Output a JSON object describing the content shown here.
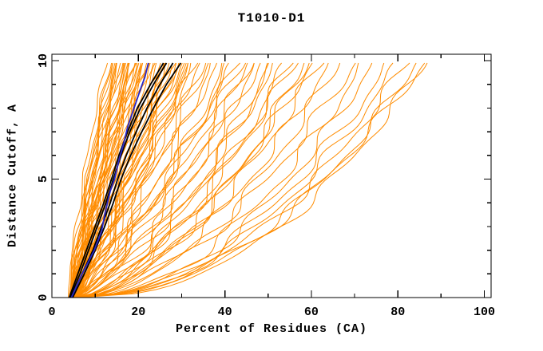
{
  "chart_data": {
    "type": "line",
    "title": "T1010-D1",
    "xlabel": "Percent of Residues (CA)",
    "ylabel": "Distance Cutoff, A",
    "xlim": [
      0,
      101.6
    ],
    "ylim": [
      0,
      10.27
    ],
    "x_major_ticks": [
      0,
      20,
      40,
      60,
      80,
      100
    ],
    "x_minor_ticks": [
      10,
      30,
      50,
      70,
      90
    ],
    "y_major_ticks": [
      0,
      5,
      10
    ],
    "y_minor_ticks": [
      1,
      2,
      3,
      4,
      6,
      7,
      8,
      9
    ],
    "grid": false,
    "legend": null,
    "colors": {
      "model_curves": "#FF8C00",
      "highlight_black": "#000000",
      "highlight_blue": "#2828C8",
      "axis": "#000000",
      "background": "#FFFFFF"
    },
    "curve_y_end": 9.9,
    "orange_curve_format": "[x_start_pct, x_end_pct_at_cutoff10, shape_exponent, wiggle_amp, wiggle_phase]",
    "orange_curves": [
      [
        4.0,
        12.6,
        1.45,
        0.4,
        0.5
      ],
      [
        4.2,
        13.5,
        1.35,
        0.5,
        1.2
      ],
      [
        4.5,
        14.0,
        1.3,
        0.5,
        2.1
      ],
      [
        3.8,
        14.5,
        1.25,
        0.6,
        3.0
      ],
      [
        4.8,
        15.0,
        1.2,
        0.5,
        4.2
      ],
      [
        5.0,
        15.5,
        1.3,
        0.6,
        5.1
      ],
      [
        4.3,
        16.0,
        1.15,
        0.7,
        0.9
      ],
      [
        4.6,
        16.5,
        1.25,
        0.5,
        1.8
      ],
      [
        5.2,
        17.0,
        1.1,
        0.6,
        2.7
      ],
      [
        4.1,
        17.5,
        1.2,
        0.7,
        3.6
      ],
      [
        4.9,
        18.0,
        1.05,
        0.6,
        4.5
      ],
      [
        5.5,
        18.5,
        1.15,
        0.7,
        5.4
      ],
      [
        4.4,
        19.0,
        1.1,
        0.8,
        0.3
      ],
      [
        5.1,
        19.5,
        1.0,
        0.6,
        1.5
      ],
      [
        4.7,
        20.0,
        1.2,
        0.7,
        2.4
      ],
      [
        5.3,
        20.5,
        1.05,
        0.8,
        3.3
      ],
      [
        4.2,
        21.0,
        1.1,
        0.6,
        4.8
      ],
      [
        5.6,
        21.5,
        0.95,
        0.7,
        5.7
      ],
      [
        4.8,
        22.0,
        1.15,
        0.8,
        0.7
      ],
      [
        5.0,
        13.8,
        1.4,
        0.4,
        1.1
      ],
      [
        4.5,
        15.8,
        1.28,
        0.5,
        2.9
      ],
      [
        5.4,
        16.8,
        1.12,
        0.6,
        3.8
      ],
      [
        4.3,
        18.2,
        1.18,
        0.7,
        4.9
      ],
      [
        5.2,
        19.2,
        1.02,
        0.6,
        0.2
      ],
      [
        4.6,
        20.8,
        1.08,
        0.7,
        1.9
      ],
      [
        5.7,
        21.8,
        0.92,
        0.8,
        2.6
      ],
      [
        4.9,
        14.8,
        1.32,
        0.5,
        3.4
      ],
      [
        5.3,
        17.8,
        1.1,
        0.6,
        4.1
      ],
      [
        4.4,
        19.8,
        1.12,
        0.7,
        5.2
      ],
      [
        5.8,
        22.0,
        1.0,
        0.8,
        0.8
      ],
      [
        4.5,
        23.0,
        1.0,
        0.9,
        1.3
      ],
      [
        5.0,
        24.0,
        0.95,
        0.8,
        2.2
      ],
      [
        5.5,
        25.0,
        0.9,
        1.0,
        3.1
      ],
      [
        4.8,
        26.0,
        1.05,
        0.9,
        4.0
      ],
      [
        5.2,
        27.0,
        0.92,
        1.0,
        5.0
      ],
      [
        4.6,
        28.0,
        0.98,
        1.1,
        0.4
      ],
      [
        5.6,
        29.0,
        0.88,
        0.9,
        1.6
      ],
      [
        4.9,
        30.0,
        0.95,
        1.0,
        2.5
      ],
      [
        5.3,
        31.0,
        0.85,
        1.1,
        3.7
      ],
      [
        5.8,
        32.0,
        0.9,
        1.0,
        4.6
      ],
      [
        4.7,
        23.5,
        1.02,
        0.9,
        5.5
      ],
      [
        5.1,
        25.5,
        0.93,
        1.0,
        0.6
      ],
      [
        5.5,
        27.5,
        0.9,
        1.1,
        1.7
      ],
      [
        4.8,
        29.5,
        0.96,
        0.9,
        2.8
      ],
      [
        5.4,
        31.5,
        0.87,
        1.0,
        3.9
      ],
      [
        5.0,
        24.5,
        1.0,
        0.9,
        5.8
      ],
      [
        5.9,
        26.5,
        0.85,
        1.0,
        1.0
      ],
      [
        4.6,
        28.5,
        0.93,
        1.1,
        2.0
      ],
      [
        5.2,
        30.5,
        0.88,
        1.0,
        3.2
      ],
      [
        5.6,
        32.5,
        0.82,
        1.1,
        4.4
      ],
      [
        5.0,
        33.0,
        0.9,
        1.2,
        0.5
      ],
      [
        5.5,
        35.0,
        0.8,
        1.3,
        1.4
      ],
      [
        4.8,
        36.0,
        0.85,
        1.2,
        2.3
      ],
      [
        5.3,
        38.0,
        0.78,
        1.3,
        3.5
      ],
      [
        5.8,
        40.0,
        0.72,
        1.2,
        4.7
      ],
      [
        5.1,
        42.0,
        0.8,
        1.4,
        5.6
      ],
      [
        4.9,
        44.0,
        0.75,
        1.3,
        0.9
      ],
      [
        5.6,
        45.0,
        0.7,
        1.2,
        2.1
      ],
      [
        5.2,
        34.0,
        0.88,
        1.2,
        3.0
      ],
      [
        5.7,
        37.0,
        0.76,
        1.3,
        4.3
      ],
      [
        5.4,
        41.0,
        0.73,
        1.4,
        5.3
      ],
      [
        5.0,
        43.0,
        0.82,
        1.2,
        0.1
      ],
      [
        5.5,
        46.0,
        0.7,
        1.4,
        1.2
      ],
      [
        5.0,
        48.0,
        0.65,
        1.5,
        2.4
      ],
      [
        5.8,
        50.0,
        0.6,
        1.4,
        3.6
      ],
      [
        5.3,
        52.0,
        0.68,
        1.5,
        4.8
      ],
      [
        5.6,
        54.0,
        0.58,
        1.4,
        5.9
      ],
      [
        5.1,
        56.0,
        0.63,
        1.5,
        0.8
      ],
      [
        5.9,
        58.0,
        0.55,
        1.4,
        1.9
      ],
      [
        5.4,
        60.0,
        0.6,
        1.5,
        3.1
      ],
      [
        5.2,
        47.0,
        0.66,
        1.5,
        4.1
      ],
      [
        5.7,
        51.0,
        0.62,
        1.4,
        5.2
      ],
      [
        5.0,
        55.0,
        0.6,
        1.5,
        0.3
      ],
      [
        5.5,
        59.0,
        0.57,
        1.4,
        1.6
      ],
      [
        5.5,
        62.0,
        0.58,
        1.6,
        0.4
      ],
      [
        5.8,
        66.0,
        0.52,
        1.5,
        1.5
      ],
      [
        5.2,
        70.0,
        0.55,
        1.6,
        2.6
      ],
      [
        6.0,
        74.0,
        0.48,
        1.5,
        3.8
      ],
      [
        5.6,
        78.0,
        0.5,
        1.6,
        5.0
      ],
      [
        5.3,
        82.0,
        0.47,
        1.5,
        0.2
      ],
      [
        6.2,
        86.0,
        0.45,
        1.4,
        1.1
      ],
      [
        5.9,
        86.0,
        0.5,
        1.5,
        2.8
      ],
      [
        5.4,
        64.0,
        0.55,
        1.5,
        3.9
      ],
      [
        5.8,
        72.0,
        0.5,
        1.6,
        4.9
      ],
      [
        5.1,
        80.0,
        0.48,
        1.5,
        5.7
      ],
      [
        6.0,
        84.0,
        0.46,
        1.4,
        2.2
      ]
    ],
    "black_curves": [
      [
        [
          4.2,
          0
        ],
        [
          6.5,
          1
        ],
        [
          8.5,
          2
        ],
        [
          10.5,
          3
        ],
        [
          12.5,
          4
        ],
        [
          14.2,
          5
        ],
        [
          16.0,
          6
        ],
        [
          18.0,
          7
        ],
        [
          20.5,
          8
        ],
        [
          23.5,
          9
        ],
        [
          26.5,
          9.9
        ]
      ],
      [
        [
          4.5,
          0
        ],
        [
          7.0,
          1
        ],
        [
          9.5,
          2
        ],
        [
          11.5,
          3
        ],
        [
          13.5,
          4
        ],
        [
          15.2,
          5
        ],
        [
          17.2,
          6
        ],
        [
          19.5,
          7
        ],
        [
          22.0,
          8
        ],
        [
          25.0,
          9
        ],
        [
          28.0,
          9.9
        ]
      ],
      [
        [
          4.8,
          0
        ],
        [
          7.5,
          1
        ],
        [
          10.0,
          2
        ],
        [
          12.2,
          3
        ],
        [
          14.2,
          4
        ],
        [
          16.0,
          5
        ],
        [
          18.2,
          6
        ],
        [
          20.8,
          7
        ],
        [
          23.5,
          8
        ],
        [
          26.5,
          9
        ],
        [
          29.8,
          9.9
        ]
      ],
      [
        [
          4.0,
          0
        ],
        [
          6.0,
          1
        ],
        [
          8.0,
          2
        ],
        [
          10.0,
          3
        ],
        [
          12.0,
          4
        ],
        [
          13.8,
          5
        ],
        [
          15.5,
          6
        ],
        [
          17.5,
          7
        ],
        [
          19.8,
          8
        ],
        [
          22.8,
          9
        ],
        [
          25.8,
          9.9
        ]
      ]
    ],
    "blue_curve": [
      [
        4.5,
        0
      ],
      [
        7.0,
        1
      ],
      [
        9.8,
        2
      ],
      [
        11.5,
        2.8
      ],
      [
        12.2,
        3.5
      ],
      [
        13.5,
        4.5
      ],
      [
        14.5,
        5
      ],
      [
        15.5,
        5.8
      ],
      [
        16.6,
        6.5
      ],
      [
        17.5,
        7.2
      ],
      [
        19.0,
        8
      ],
      [
        20.5,
        8.8
      ],
      [
        21.5,
        9.3
      ],
      [
        22.3,
        9.9
      ]
    ]
  }
}
